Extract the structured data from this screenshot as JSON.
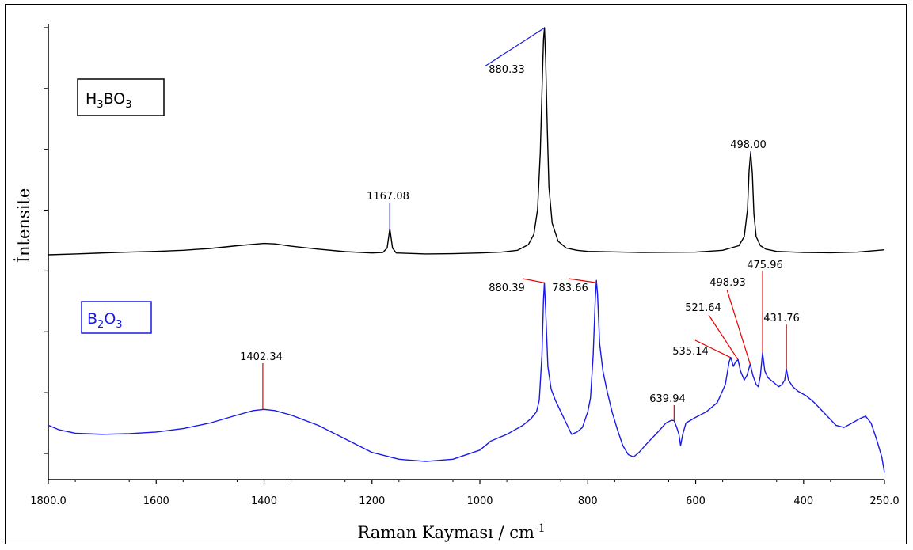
{
  "chart_data": {
    "type": "line",
    "xlabel_main": "Raman Kayması / cm",
    "xlabel_sup": "-1",
    "ylabel": "İntensite",
    "xlim": [
      1800.0,
      250.0
    ],
    "x_reversed": true,
    "xticks": [
      "1800.0",
      "1600",
      "1400",
      "1200",
      "1000",
      "800",
      "600",
      "400",
      "250.0"
    ],
    "grid": false,
    "colors": {
      "h3bo3": "#000000",
      "b2o3": "#1a1ae6",
      "peak_line_h3bo3": "#1a1ae6",
      "peak_line_b2o3": "#e60000"
    },
    "series": [
      {
        "key": "h3bo3",
        "legend": {
          "base1": "H",
          "sub1": "3",
          "base2": "BO",
          "sub2": "3"
        },
        "peaks": [
          {
            "x": 1167.08,
            "label": "1167.08"
          },
          {
            "x": 880.33,
            "label": "880.33"
          },
          {
            "x": 498.0,
            "label": "498.00"
          }
        ],
        "points": [
          [
            1800,
            0.0
          ],
          [
            1750,
            0.004
          ],
          [
            1700,
            0.008
          ],
          [
            1650,
            0.012
          ],
          [
            1600,
            0.015
          ],
          [
            1550,
            0.02
          ],
          [
            1500,
            0.028
          ],
          [
            1450,
            0.04
          ],
          [
            1400,
            0.05
          ],
          [
            1380,
            0.048
          ],
          [
            1350,
            0.038
          ],
          [
            1300,
            0.025
          ],
          [
            1250,
            0.014
          ],
          [
            1200,
            0.008
          ],
          [
            1180,
            0.01
          ],
          [
            1172,
            0.03
          ],
          [
            1167,
            0.115
          ],
          [
            1162,
            0.03
          ],
          [
            1155,
            0.008
          ],
          [
            1100,
            0.004
          ],
          [
            1050,
            0.005
          ],
          [
            1000,
            0.008
          ],
          [
            960,
            0.012
          ],
          [
            930,
            0.02
          ],
          [
            910,
            0.045
          ],
          [
            900,
            0.09
          ],
          [
            893,
            0.2
          ],
          [
            888,
            0.45
          ],
          [
            884,
            0.8
          ],
          [
            882,
            0.95
          ],
          [
            880.3,
            1.0
          ],
          [
            878,
            0.86
          ],
          [
            875,
            0.55
          ],
          [
            872,
            0.3
          ],
          [
            866,
            0.14
          ],
          [
            855,
            0.06
          ],
          [
            840,
            0.03
          ],
          [
            820,
            0.02
          ],
          [
            800,
            0.015
          ],
          [
            700,
            0.01
          ],
          [
            600,
            0.012
          ],
          [
            550,
            0.02
          ],
          [
            520,
            0.04
          ],
          [
            510,
            0.08
          ],
          [
            504,
            0.2
          ],
          [
            501,
            0.37
          ],
          [
            498,
            0.45
          ],
          [
            495,
            0.36
          ],
          [
            492,
            0.18
          ],
          [
            488,
            0.08
          ],
          [
            480,
            0.04
          ],
          [
            470,
            0.025
          ],
          [
            450,
            0.015
          ],
          [
            400,
            0.01
          ],
          [
            350,
            0.009
          ],
          [
            300,
            0.012
          ],
          [
            250,
            0.022
          ]
        ]
      },
      {
        "key": "b2o3",
        "legend": {
          "base1": "B",
          "sub1": "2",
          "base2": "O",
          "sub2": "3"
        },
        "peaks": [
          {
            "x": 1402.34,
            "label": "1402.34"
          },
          {
            "x": 880.39,
            "label": "880.39"
          },
          {
            "x": 783.66,
            "label": "783.66"
          },
          {
            "x": 639.94,
            "label": "639.94"
          },
          {
            "x": 535.14,
            "label": "535.14"
          },
          {
            "x": 521.64,
            "label": "521.64"
          },
          {
            "x": 498.93,
            "label": "498.93"
          },
          {
            "x": 475.96,
            "label": "475.96"
          },
          {
            "x": 431.76,
            "label": "431.76"
          }
        ],
        "points": [
          [
            1800,
            0.24
          ],
          [
            1780,
            0.22
          ],
          [
            1750,
            0.205
          ],
          [
            1700,
            0.2
          ],
          [
            1650,
            0.203
          ],
          [
            1600,
            0.21
          ],
          [
            1550,
            0.225
          ],
          [
            1500,
            0.25
          ],
          [
            1450,
            0.285
          ],
          [
            1420,
            0.305
          ],
          [
            1400,
            0.31
          ],
          [
            1380,
            0.305
          ],
          [
            1350,
            0.285
          ],
          [
            1300,
            0.24
          ],
          [
            1250,
            0.18
          ],
          [
            1200,
            0.12
          ],
          [
            1150,
            0.09
          ],
          [
            1100,
            0.08
          ],
          [
            1050,
            0.09
          ],
          [
            1000,
            0.13
          ],
          [
            980,
            0.17
          ],
          [
            950,
            0.2
          ],
          [
            920,
            0.24
          ],
          [
            905,
            0.27
          ],
          [
            895,
            0.3
          ],
          [
            890,
            0.35
          ],
          [
            885,
            0.55
          ],
          [
            882,
            0.8
          ],
          [
            880.4,
            0.87
          ],
          [
            878,
            0.75
          ],
          [
            874,
            0.5
          ],
          [
            868,
            0.4
          ],
          [
            860,
            0.35
          ],
          [
            850,
            0.3
          ],
          [
            840,
            0.25
          ],
          [
            830,
            0.2
          ],
          [
            820,
            0.21
          ],
          [
            810,
            0.23
          ],
          [
            800,
            0.3
          ],
          [
            795,
            0.36
          ],
          [
            790,
            0.55
          ],
          [
            786,
            0.8
          ],
          [
            784,
            0.88
          ],
          [
            782,
            0.82
          ],
          [
            778,
            0.6
          ],
          [
            772,
            0.48
          ],
          [
            765,
            0.4
          ],
          [
            755,
            0.3
          ],
          [
            745,
            0.22
          ],
          [
            735,
            0.15
          ],
          [
            725,
            0.11
          ],
          [
            715,
            0.1
          ],
          [
            705,
            0.12
          ],
          [
            690,
            0.16
          ],
          [
            670,
            0.21
          ],
          [
            655,
            0.25
          ],
          [
            645,
            0.262
          ],
          [
            640,
            0.26
          ],
          [
            635,
            0.23
          ],
          [
            631,
            0.2
          ],
          [
            628,
            0.15
          ],
          [
            624,
            0.2
          ],
          [
            618,
            0.25
          ],
          [
            600,
            0.275
          ],
          [
            580,
            0.3
          ],
          [
            560,
            0.34
          ],
          [
            545,
            0.42
          ],
          [
            538,
            0.52
          ],
          [
            535,
            0.54
          ],
          [
            530,
            0.5
          ],
          [
            526,
            0.52
          ],
          [
            521.6,
            0.53
          ],
          [
            517,
            0.48
          ],
          [
            510,
            0.44
          ],
          [
            505,
            0.46
          ],
          [
            499,
            0.51
          ],
          [
            494,
            0.46
          ],
          [
            488,
            0.42
          ],
          [
            484,
            0.41
          ],
          [
            480,
            0.46
          ],
          [
            476,
            0.56
          ],
          [
            472,
            0.48
          ],
          [
            466,
            0.45
          ],
          [
            456,
            0.43
          ],
          [
            446,
            0.41
          ],
          [
            440,
            0.42
          ],
          [
            435,
            0.44
          ],
          [
            432,
            0.49
          ],
          [
            428,
            0.44
          ],
          [
            420,
            0.41
          ],
          [
            410,
            0.39
          ],
          [
            395,
            0.37
          ],
          [
            380,
            0.34
          ],
          [
            360,
            0.29
          ],
          [
            340,
            0.24
          ],
          [
            325,
            0.23
          ],
          [
            310,
            0.25
          ],
          [
            295,
            0.27
          ],
          [
            285,
            0.28
          ],
          [
            275,
            0.25
          ],
          [
            265,
            0.18
          ],
          [
            255,
            0.1
          ],
          [
            250,
            0.03
          ]
        ]
      }
    ]
  }
}
